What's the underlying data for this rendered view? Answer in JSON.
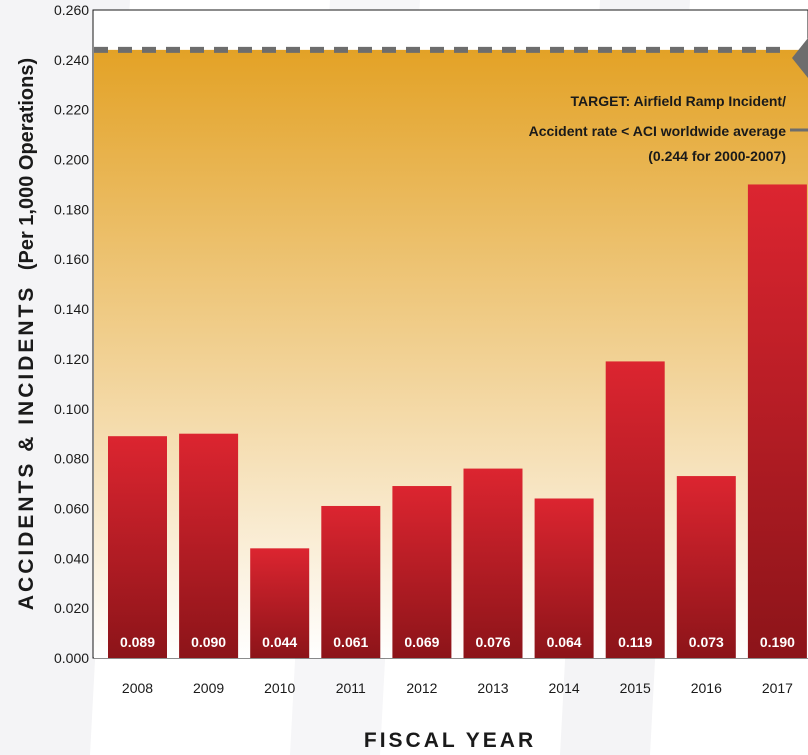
{
  "chart_data": {
    "type": "bar",
    "categories": [
      "2008",
      "2009",
      "2010",
      "2011",
      "2012",
      "2013",
      "2014",
      "2015",
      "2016",
      "2017"
    ],
    "values": [
      0.089,
      0.09,
      0.044,
      0.061,
      0.069,
      0.076,
      0.064,
      0.119,
      0.073,
      0.19
    ],
    "data_labels": [
      "0.089",
      "0.090",
      "0.044",
      "0.061",
      "0.069",
      "0.076",
      "0.064",
      "0.119",
      "0.073",
      "0.190"
    ],
    "xlabel": "FISCAL YEAR",
    "ylabel_main": "ACCIDENTS & INCIDENTS",
    "ylabel_sub": "(Per 1,000 Operations)",
    "ylim": [
      0,
      0.26
    ],
    "yticks": [
      "0.000",
      "0.020",
      "0.040",
      "0.060",
      "0.080",
      "0.100",
      "0.120",
      "0.140",
      "0.160",
      "0.180",
      "0.200",
      "0.220",
      "0.240",
      "0.260"
    ],
    "grid": false,
    "target": {
      "value": 0.244,
      "label_lines": [
        "TARGET: Airfield Ramp Incident/",
        "Accident rate < ACI worldwide average",
        "(0.244 for 2000-2007)"
      ]
    },
    "colors": {
      "bar_top": "#dc2530",
      "bar_bottom": "#8c1419",
      "target_fill_top": "#e3a226",
      "target_fill_bottom": "#ffffff",
      "target_line": "#6d6d6d"
    }
  }
}
